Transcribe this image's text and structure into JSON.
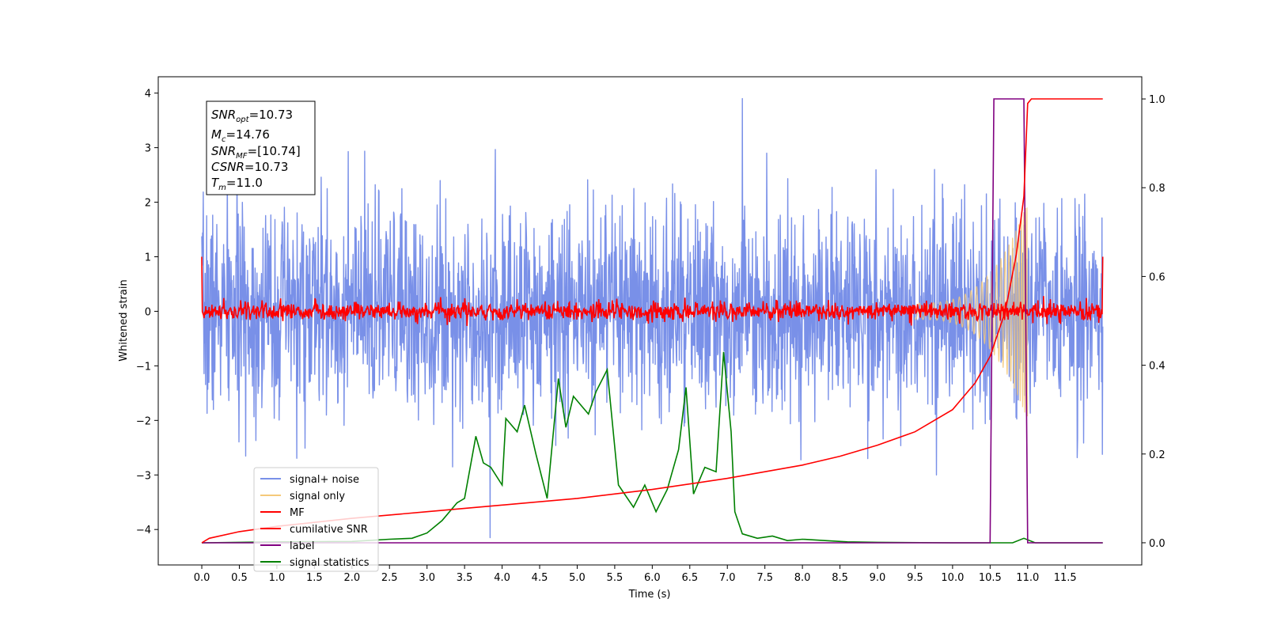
{
  "chart_data": {
    "type": "line",
    "xlabel": "Time (s)",
    "ylabel": "Whitened strain",
    "xlim": [
      -0.58,
      12.52
    ],
    "ylim": [
      -4.65,
      4.3
    ],
    "y2lim": [
      -0.05,
      1.05
    ],
    "xticks": [
      "0.0",
      "0.5",
      "1.0",
      "1.5",
      "2.0",
      "2.5",
      "3.0",
      "3.5",
      "4.0",
      "4.5",
      "5.0",
      "5.5",
      "6.0",
      "6.5",
      "7.0",
      "7.5",
      "8.0",
      "8.5",
      "9.0",
      "9.5",
      "10.0",
      "10.5",
      "11.0",
      "11.5"
    ],
    "yticks": [
      "4",
      "3",
      "2",
      "1",
      "0",
      "−1",
      "−2",
      "−3",
      "−4"
    ],
    "y2ticks": [
      "1.0",
      "0.8",
      "0.6",
      "0.4",
      "0.2",
      "0.0"
    ],
    "grid": false,
    "legend_position": "lower-left",
    "annotation": {
      "snr_opt": "=10.73",
      "mc": "=14.76",
      "snr_mf": "=[10.74]",
      "csnr": "=10.73",
      "tm": "=11.0"
    },
    "series": [
      {
        "name": "signal+ noise",
        "color": "#7990e8",
        "axis": "left",
        "kind": "noise band",
        "time_range": [
          0.0,
          12.0
        ],
        "max_peak": 3.9,
        "min_trough": -4.15
      },
      {
        "name": "signal only",
        "color": "#f5c97a",
        "axis": "left",
        "kind": "chirp",
        "time_range": [
          9.5,
          11.0
        ],
        "peak_amplitude": 2.0
      },
      {
        "name": "MF",
        "color": "#ff0000",
        "axis": "left",
        "kind": "noise band",
        "time_range": [
          0.0,
          12.0
        ],
        "amplitude": 0.15,
        "end_values": [
          1.0,
          1.0
        ]
      },
      {
        "name": "cumilative SNR",
        "color": "#ff0000",
        "axis": "right",
        "x": [
          0.0,
          0.1,
          0.5,
          1.0,
          2.0,
          3.0,
          4.0,
          5.0,
          6.0,
          7.0,
          8.0,
          8.5,
          9.0,
          9.5,
          10.0,
          10.3,
          10.5,
          10.7,
          10.85,
          10.95,
          11.0,
          11.05,
          12.0
        ],
        "y": [
          0.0,
          0.01,
          0.025,
          0.037,
          0.055,
          0.07,
          0.085,
          0.1,
          0.12,
          0.145,
          0.175,
          0.195,
          0.22,
          0.25,
          0.3,
          0.36,
          0.42,
          0.52,
          0.65,
          0.78,
          0.99,
          1.0,
          1.0
        ]
      },
      {
        "name": "label",
        "color": "#800080",
        "axis": "right",
        "x": [
          0.0,
          10.5,
          10.55,
          10.95,
          11.0,
          12.0
        ],
        "y": [
          0.0,
          0.0,
          1.0,
          1.0,
          0.0,
          0.0
        ]
      },
      {
        "name": "signal statistics",
        "color": "#008000",
        "axis": "right",
        "x": [
          0.0,
          1.0,
          2.0,
          2.5,
          2.8,
          3.0,
          3.2,
          3.4,
          3.5,
          3.65,
          3.75,
          3.85,
          4.0,
          4.05,
          4.2,
          4.3,
          4.45,
          4.6,
          4.75,
          4.85,
          4.95,
          5.05,
          5.15,
          5.25,
          5.4,
          5.55,
          5.75,
          5.9,
          6.05,
          6.2,
          6.35,
          6.45,
          6.55,
          6.7,
          6.85,
          6.95,
          7.05,
          7.1,
          7.2,
          7.4,
          7.6,
          7.8,
          8.0,
          8.3,
          8.6,
          9.0,
          10.0,
          10.8,
          10.95,
          11.1,
          11.3,
          12.0
        ],
        "y": [
          0.0,
          0.002,
          0.003,
          0.008,
          0.01,
          0.022,
          0.05,
          0.09,
          0.1,
          0.24,
          0.18,
          0.17,
          0.13,
          0.28,
          0.25,
          0.31,
          0.2,
          0.1,
          0.37,
          0.26,
          0.33,
          0.31,
          0.29,
          0.34,
          0.39,
          0.13,
          0.08,
          0.13,
          0.07,
          0.12,
          0.21,
          0.35,
          0.11,
          0.17,
          0.16,
          0.43,
          0.25,
          0.07,
          0.02,
          0.01,
          0.015,
          0.005,
          0.008,
          0.005,
          0.002,
          0.001,
          0.0,
          0.0,
          0.01,
          0.0,
          0.0,
          0.0
        ]
      }
    ]
  }
}
